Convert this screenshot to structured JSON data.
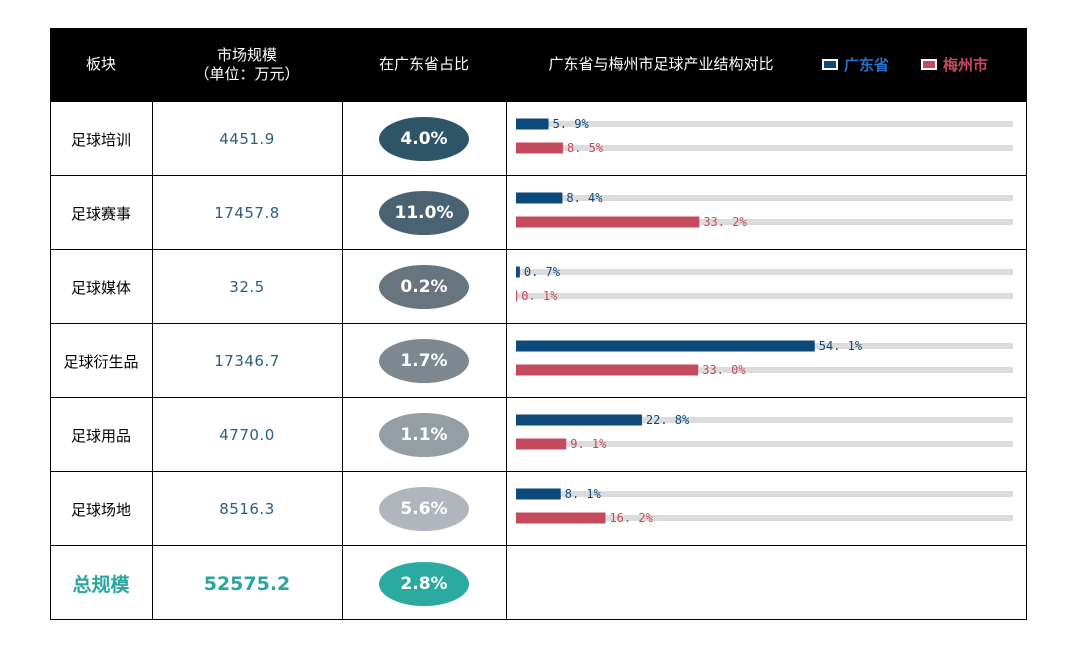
{
  "header": {
    "col_sector": "板块",
    "col_market_line1": "市场规模",
    "col_market_line2": "（单位：万元）",
    "col_share": "在广东省占比",
    "col_compare": "广东省与梅州市足球产业结构对比",
    "legend": [
      {
        "label": "广东省",
        "color": "#0d4a7c"
      },
      {
        "label": "梅州市",
        "color": "#c54a5e"
      }
    ]
  },
  "rows": [
    {
      "sector": "足球培训",
      "market": "4451.9",
      "share": "4.0%",
      "pill_color": "#2e5468"
    },
    {
      "sector": "足球赛事",
      "market": "17457.8",
      "share": "11.0%",
      "pill_color": "#4a6373"
    },
    {
      "sector": "足球媒体",
      "market": "32.5",
      "share": "0.2%",
      "pill_color": "#67757f"
    },
    {
      "sector": "足球衍生品",
      "market": "17346.7",
      "share": "1.7%",
      "pill_color": "#7d8891"
    },
    {
      "sector": "足球用品",
      "market": "4770.0",
      "share": "1.1%",
      "pill_color": "#959da5"
    },
    {
      "sector": "足球场地",
      "market": "8516.3",
      "share": "5.6%",
      "pill_color": "#b1b5bd"
    }
  ],
  "total": {
    "label": "总规模",
    "market": "52575.2",
    "share": "2.8%",
    "pill_color": "#2aaaa0"
  },
  "chart_data": {
    "type": "bar",
    "orientation": "horizontal",
    "title": "广东省与梅州市足球产业结构对比",
    "unit": "%",
    "xlim": [
      0,
      90
    ],
    "categories": [
      "足球培训",
      "足球赛事",
      "足球媒体",
      "足球衍生品",
      "足球用品",
      "足球场地"
    ],
    "series": [
      {
        "name": "广东省",
        "color": "#0d4a7c",
        "values": [
          5.9,
          8.4,
          0.7,
          54.1,
          22.8,
          8.1
        ],
        "labels": [
          "5. 9%",
          "8. 4%",
          "0. 7%",
          "54. 1%",
          "22. 8%",
          "8. 1%"
        ]
      },
      {
        "name": "梅州市",
        "color": "#c54a5e",
        "values": [
          8.5,
          33.2,
          0.1,
          33.0,
          9.1,
          16.2
        ],
        "labels": [
          "8. 5%",
          "33. 2%",
          "0. 1%",
          "33. 0%",
          "9. 1%",
          "16. 2%"
        ]
      }
    ]
  }
}
